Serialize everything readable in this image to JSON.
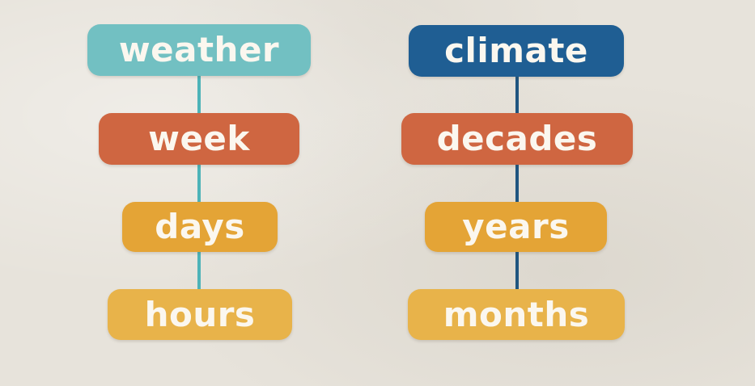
{
  "weather_column": {
    "title": "weather",
    "items": [
      "week",
      "days",
      "hours"
    ]
  },
  "climate_column": {
    "title": "climate",
    "items": [
      "decades",
      "years",
      "months"
    ]
  },
  "colors": {
    "background": "#e7e3db",
    "weather_title": "#72c0c2",
    "climate_title": "#1f5e93",
    "weather_connector": "#4db3b8",
    "climate_connector": "#1f5580",
    "tier_1": "#cf6641",
    "tier_2": "#e4a436",
    "tier_3": "#e8b34a",
    "text": "#fbf7ef"
  }
}
